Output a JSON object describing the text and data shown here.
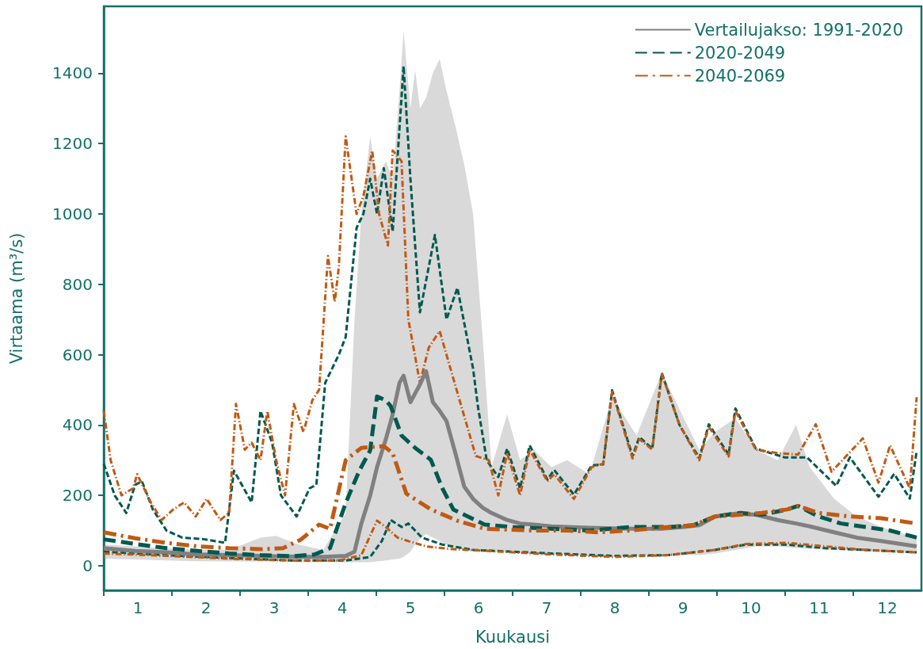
{
  "chart_data": {
    "type": "line",
    "xlabel": "Kuukausi",
    "ylabel": "Virtaama (m³/s)",
    "xlim": [
      0.5,
      12.5
    ],
    "xticks": [
      {
        "value": 0.5,
        "label": null
      },
      {
        "value": 1.5,
        "label": null
      },
      {
        "value": 2.5,
        "label": null
      },
      {
        "value": 3.5,
        "label": null
      },
      {
        "value": 4.5,
        "label": null
      },
      {
        "value": 5.5,
        "label": null
      },
      {
        "value": 6.5,
        "label": null
      },
      {
        "value": 7.5,
        "label": null
      },
      {
        "value": 8.5,
        "label": null
      },
      {
        "value": 9.5,
        "label": null
      },
      {
        "value": 10.5,
        "label": null
      },
      {
        "value": 11.5,
        "label": null
      },
      1,
      2,
      3,
      4,
      5,
      6,
      7,
      8,
      9,
      10,
      11,
      12
    ],
    "ylim": [
      -70,
      1590
    ],
    "yticks": [
      0,
      200,
      400,
      600,
      800,
      1000,
      1200,
      1400
    ],
    "grid": false,
    "legend": "top right",
    "marker": "none",
    "series": [
      {
        "name": "Vertailujakso: 1991-2020",
        "color": "#808080",
        "line_style": "solid",
        "x": [
          0.5,
          0.96,
          1.42,
          1.88,
          2.34,
          2.8,
          3.03,
          3.36,
          3.72,
          4.05,
          4.18,
          4.28,
          4.41,
          4.51,
          4.64,
          4.74,
          4.84,
          4.9,
          5.0,
          5.07,
          5.14,
          5.23,
          5.33,
          5.43,
          5.53,
          5.66,
          5.79,
          5.92,
          6.06,
          6.19,
          6.42,
          6.61,
          6.81,
          7.07,
          7.3,
          7.63,
          7.96,
          8.32,
          8.69,
          9.01,
          9.24,
          9.47,
          9.77,
          10.07,
          10.39,
          10.66,
          10.86,
          11.22,
          11.55,
          11.91,
          12.43
        ],
        "values": [
          50,
          42,
          38,
          32,
          30,
          28,
          27,
          26,
          25,
          28,
          40,
          120,
          200,
          280,
          360,
          430,
          520,
          540,
          465,
          490,
          515,
          553,
          465,
          440,
          411,
          320,
          225,
          190,
          165,
          150,
          130,
          120,
          117,
          112,
          110,
          108,
          106,
          105,
          105,
          110,
          115,
          140,
          148,
          145,
          130,
          120,
          112,
          95,
          80,
          70,
          55
        ],
        "lower": [
          20,
          18,
          15,
          13,
          12,
          12,
          12,
          10,
          10,
          10,
          10,
          10,
          10,
          12,
          15,
          18,
          20,
          25,
          40,
          60,
          75,
          90,
          80,
          70,
          60,
          50,
          45,
          42,
          40,
          40,
          38,
          36,
          35,
          33,
          30,
          28,
          28,
          28,
          28,
          30,
          30,
          35,
          45,
          55,
          55,
          50,
          48,
          45,
          42,
          40,
          35
        ],
        "upper": [
          60,
          55,
          50,
          45,
          45,
          80,
          85,
          60,
          45,
          150,
          700,
          1000,
          1220,
          1100,
          1150,
          1100,
          1350,
          1520,
          1300,
          1410,
          1300,
          1330,
          1400,
          1440,
          1350,
          1250,
          1140,
          1000,
          650,
          280,
          430,
          300,
          330,
          280,
          300,
          260,
          480,
          370,
          550,
          420,
          330,
          380,
          420,
          330,
          300,
          400,
          280,
          190,
          140,
          110,
          80
        ]
      },
      {
        "name": "2020-2049",
        "color": "#00594f",
        "line_style": "dashed",
        "x": [
          0.5,
          0.96,
          1.42,
          1.88,
          2.34,
          2.8,
          3.26,
          3.59,
          3.82,
          4.05,
          4.25,
          4.41,
          4.51,
          4.64,
          4.71,
          4.87,
          5.07,
          5.3,
          5.47,
          5.63,
          6.09,
          6.48,
          7.07,
          7.63,
          8.23,
          8.78,
          9.15,
          9.47,
          9.84,
          10.16,
          10.53,
          10.69,
          10.99,
          11.32,
          11.68,
          12.04,
          12.43
        ],
        "values": [
          75,
          62,
          50,
          42,
          35,
          30,
          27,
          32,
          50,
          178,
          270,
          328,
          481,
          470,
          454,
          370,
          335,
          301,
          220,
          160,
          117,
          110,
          105,
          100,
          110,
          110,
          115,
          140,
          150,
          145,
          160,
          170,
          140,
          120,
          110,
          100,
          80
        ]
      },
      {
        "color": "#00594f",
        "line_style": "dashed",
        "x": [
          0.5,
          0.66,
          0.83,
          0.96,
          1.06,
          1.22,
          1.42,
          1.65,
          1.98,
          2.28,
          2.41,
          2.67,
          2.8,
          2.97,
          3.1,
          3.33,
          3.52,
          3.62,
          3.75,
          3.95,
          4.05,
          4.21,
          4.31,
          4.41,
          4.51,
          4.61,
          4.74,
          4.9,
          5.0,
          5.14,
          5.36,
          5.53,
          5.69,
          5.92,
          5.99,
          6.12,
          6.29,
          6.42,
          6.61,
          6.75,
          7.01,
          7.11,
          7.4,
          7.66,
          7.83,
          7.96,
          8.26,
          8.36,
          8.55,
          8.69,
          8.95,
          9.24,
          9.38,
          9.67,
          9.77,
          10.07,
          10.49,
          10.82,
          11.25,
          11.45,
          11.87,
          12.1,
          12.33,
          12.43
        ],
        "values": [
          290,
          200,
          150,
          230,
          240,
          160,
          100,
          80,
          75,
          65,
          270,
          180,
          440,
          350,
          200,
          140,
          220,
          230,
          520,
          600,
          650,
          960,
          1000,
          1100,
          1000,
          1130,
          950,
          1420,
          1100,
          720,
          940,
          700,
          790,
          560,
          454,
          300,
          252,
          333,
          220,
          342,
          245,
          272,
          202,
          285,
          288,
          499,
          312,
          366,
          333,
          548,
          400,
          306,
          402,
          316,
          447,
          333,
          308,
          308,
          227,
          308,
          196,
          261,
          191,
          326
        ]
      },
      {
        "color": "#00594f",
        "line_style": "dashed",
        "x": [
          0.5,
          1.42,
          2.34,
          3.26,
          4.05,
          4.41,
          4.58,
          4.71,
          4.87,
          4.97,
          5.17,
          5.47,
          5.92,
          6.48,
          7.07,
          7.99,
          8.78,
          9.47,
          9.93,
          10.53,
          11.09,
          11.68,
          12.43
        ],
        "values": [
          40,
          30,
          22,
          15,
          15,
          25,
          70,
          130,
          110,
          120,
          80,
          60,
          45,
          40,
          35,
          28,
          30,
          45,
          60,
          60,
          50,
          45,
          38
        ]
      },
      {
        "name": "2040-2069",
        "color": "#c05a14",
        "line_style": "dashdot",
        "x": [
          0.5,
          0.96,
          1.42,
          1.88,
          2.34,
          2.8,
          3.13,
          3.39,
          3.66,
          3.82,
          4.05,
          4.28,
          4.61,
          4.74,
          4.94,
          5.3,
          5.69,
          6.09,
          6.81,
          7.3,
          7.76,
          8.23,
          8.78,
          9.15,
          9.47,
          9.84,
          10.16,
          10.53,
          10.69,
          10.99,
          11.45,
          11.91,
          12.43
        ],
        "values": [
          95,
          78,
          65,
          55,
          50,
          47,
          50,
          74,
          117,
          105,
          300,
          335,
          340,
          320,
          205,
          160,
          128,
          105,
          100,
          100,
          95,
          100,
          110,
          115,
          140,
          145,
          150,
          160,
          170,
          150,
          140,
          135,
          120
        ]
      },
      {
        "color": "#c05a14",
        "line_style": "dashdot",
        "x": [
          0.5,
          0.6,
          0.76,
          0.93,
          0.99,
          1.19,
          1.35,
          1.52,
          1.68,
          1.85,
          2.01,
          2.21,
          2.34,
          2.44,
          2.57,
          2.67,
          2.8,
          2.9,
          3.03,
          3.16,
          3.29,
          3.43,
          3.56,
          3.66,
          3.79,
          3.89,
          3.95,
          4.05,
          4.21,
          4.31,
          4.44,
          4.54,
          4.67,
          4.74,
          4.87,
          4.97,
          5.14,
          5.27,
          5.43,
          5.73,
          5.96,
          6.15,
          6.29,
          6.42,
          6.61,
          6.75,
          7.01,
          7.11,
          7.4,
          7.66,
          7.83,
          7.96,
          8.26,
          8.36,
          8.55,
          8.69,
          8.95,
          9.24,
          9.38,
          9.67,
          9.77,
          10.07,
          10.39,
          10.69,
          10.95,
          11.18,
          11.64,
          11.87,
          12.04,
          12.33,
          12.43
        ],
        "values": [
          440,
          300,
          200,
          220,
          260,
          180,
          130,
          160,
          180,
          140,
          190,
          130,
          150,
          460,
          330,
          350,
          300,
          440,
          300,
          200,
          460,
          380,
          470,
          500,
          880,
          750,
          850,
          1220,
          1000,
          1050,
          1180,
          1000,
          910,
          1180,
          1150,
          700,
          520,
          620,
          667,
          465,
          312,
          300,
          200,
          320,
          200,
          330,
          240,
          260,
          190,
          280,
          290,
          495,
          305,
          360,
          330,
          545,
          400,
          300,
          395,
          310,
          440,
          330,
          320,
          316,
          402,
          267,
          362,
          236,
          342,
          220,
          479
        ]
      },
      {
        "color": "#c05a14",
        "line_style": "dashdot",
        "x": [
          0.5,
          1.42,
          2.34,
          3.26,
          3.95,
          4.28,
          4.51,
          4.64,
          4.81,
          4.97,
          5.23,
          5.56,
          6.15,
          7.07,
          7.99,
          8.78,
          9.47,
          9.93,
          10.53,
          11.09,
          11.68,
          12.43
        ],
        "values": [
          35,
          28,
          20,
          15,
          15,
          30,
          128,
          110,
          80,
          70,
          55,
          48,
          42,
          32,
          25,
          30,
          45,
          62,
          65,
          55,
          45,
          38
        ]
      }
    ]
  }
}
